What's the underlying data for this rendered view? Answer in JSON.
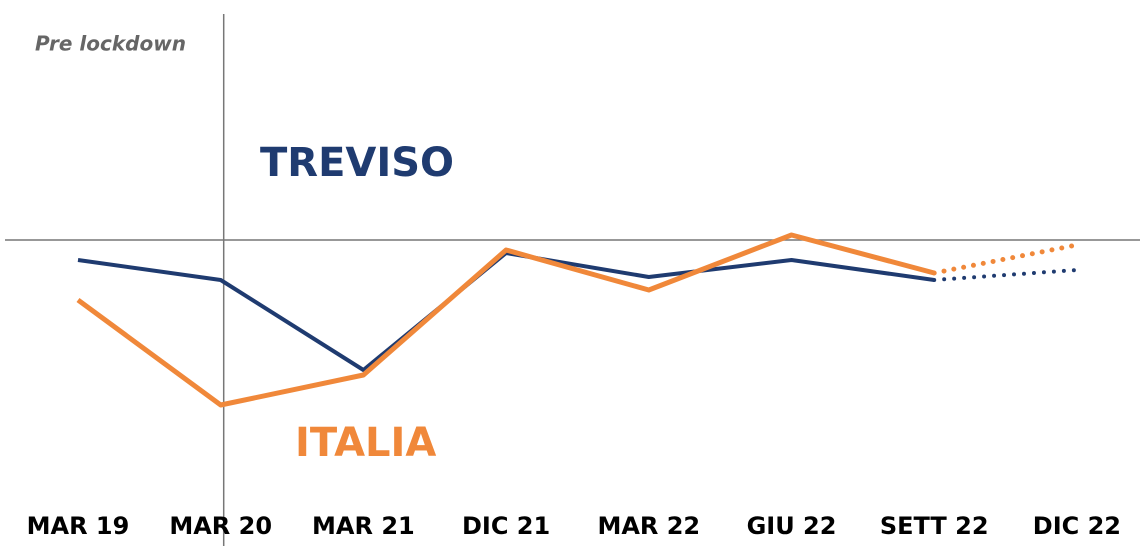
{
  "chart_data": {
    "type": "line",
    "annotation": "Pre lockdown",
    "categories": [
      "MAR 19",
      "MAR 20",
      "MAR 21",
      "DIC 21",
      "MAR 22",
      "GIU 22",
      "SETT 22",
      "DIC 22"
    ],
    "series": [
      {
        "name": "TREVISO",
        "color": "#1f3b70",
        "values": [
          -2,
          -4,
          -13,
          -1.3,
          -3.7,
          -2,
          -4,
          -3
        ]
      },
      {
        "name": "ITALIA",
        "color": "#f0883a",
        "values": [
          -6,
          -16.5,
          -13.5,
          -1,
          -5,
          0.5,
          -3.3,
          -0.5
        ]
      }
    ],
    "dotted_from_index": 6,
    "marker_index": 1,
    "hline": 0,
    "ylim": [
      -20,
      10
    ]
  }
}
